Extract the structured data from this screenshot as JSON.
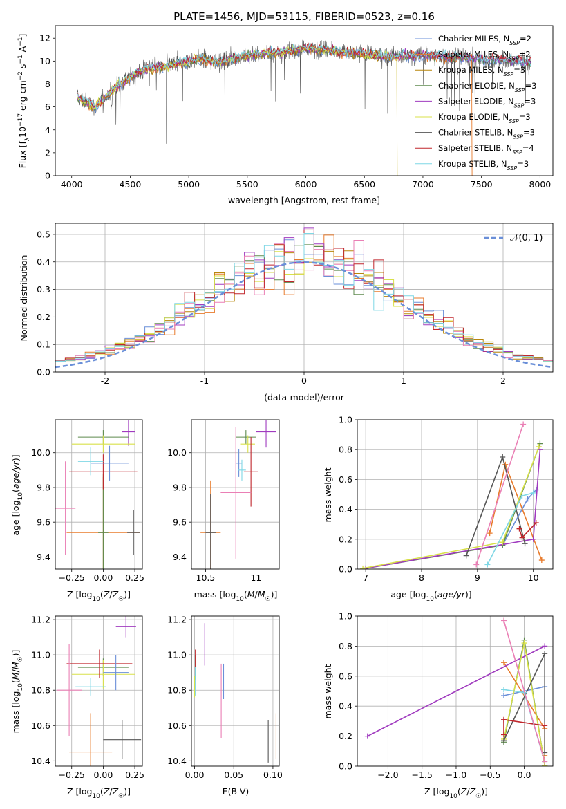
{
  "chart_data": [
    {
      "id": "spectrum",
      "type": "line",
      "title": "PLATE=1456, MJD=53115, FIBERID=0523, z=0.16",
      "xlabel": "wavelength [Angstrom, rest frame]",
      "ylabel": "Flux [f_λ 10^-17 erg cm^-2 s^-1 A^-1]",
      "xlim": [
        3860,
        8110
      ],
      "ylim": [
        0,
        13.1
      ],
      "xticks": [
        4000,
        4500,
        5000,
        5500,
        6000,
        6500,
        7000,
        7500,
        8000
      ],
      "yticks": [
        0,
        2,
        4,
        6,
        8,
        10,
        12
      ],
      "grid": false,
      "legend_position": "upper-right",
      "legend": [
        {
          "label": "Chabrier MILES, N_SSP=2",
          "color": "#6a8fd8"
        },
        {
          "label": "Salpeter MILES, N_SSP=2",
          "color": "#e87b2c"
        },
        {
          "label": "Kroupa MILES, N_SSP=3",
          "color": "#b8860b"
        },
        {
          "label": "Chabrier ELODIE, N_SSP=3",
          "color": "#5e8a4e"
        },
        {
          "label": "Salpeter ELODIE, N_SSP=3",
          "color": "#a03bbf"
        },
        {
          "label": "Kroupa ELODIE, N_SSP=3",
          "color": "#d8e04a"
        },
        {
          "label": "Chabrier STELIB, N_SSP=3",
          "color": "#555555"
        },
        {
          "label": "Salpeter STELIB, N_SSP=4",
          "color": "#c0262c"
        },
        {
          "label": "Kroupa STELIB, N_SSP=3",
          "color": "#7fd7e5"
        }
      ],
      "continuum": [
        [
          4050,
          6.8
        ],
        [
          4200,
          6.0
        ],
        [
          4350,
          7.5
        ],
        [
          4500,
          8.6
        ],
        [
          4650,
          9.4
        ],
        [
          4800,
          9.5
        ],
        [
          4950,
          9.9
        ],
        [
          5100,
          10.2
        ],
        [
          5250,
          9.9
        ],
        [
          5400,
          10.3
        ],
        [
          5600,
          10.6
        ],
        [
          5800,
          10.8
        ],
        [
          6000,
          11.1
        ],
        [
          6200,
          11.0
        ],
        [
          6400,
          10.7
        ],
        [
          6600,
          10.5
        ],
        [
          6800,
          10.4
        ],
        [
          7000,
          10.5
        ],
        [
          7200,
          10.4
        ],
        [
          7400,
          10.3
        ],
        [
          7600,
          10.1
        ],
        [
          7800,
          10.0
        ],
        [
          7920,
          9.9
        ]
      ],
      "data_end": 7920,
      "model_drop_wavelengths": [
        6780,
        7420
      ]
    },
    {
      "id": "residuals",
      "type": "histogram",
      "xlabel": "(data-model)/error",
      "ylabel": "Normed distribution",
      "xlim": [
        -2.5,
        2.5
      ],
      "ylim": [
        0,
        0.54
      ],
      "xticks": [
        -2,
        -1,
        0,
        1,
        2
      ],
      "yticks": [
        0.0,
        0.1,
        0.2,
        0.3,
        0.4,
        0.5
      ],
      "grid": true,
      "legend_position": "upper-right",
      "legend": [
        {
          "label": "𝒩(0, 1)",
          "color": "#6a8fd8",
          "style": "dashed"
        }
      ],
      "bin_width": 0.1,
      "series_colors": [
        "#6a8fd8",
        "#e87b2c",
        "#b8860b",
        "#5e8a4e",
        "#a03bbf",
        "#d8e04a",
        "#ea7fb5",
        "#c0262c",
        "#7fd7e5"
      ]
    },
    {
      "id": "age-vs-Z",
      "type": "errorbar",
      "xlabel": "Z [log10(Z/Z☉)]",
      "ylabel": "age [log10(age/yr)]",
      "xlim": [
        -0.38,
        0.31
      ],
      "ylim": [
        9.33,
        10.19
      ],
      "xticks": [
        -0.25,
        0.0,
        0.25
      ],
      "xticklabels": [
        "−0.25",
        "0.00",
        "0.25"
      ],
      "yticks": [
        9.4,
        9.6,
        9.8,
        10.0
      ],
      "grid": true,
      "points": [
        {
          "x": 0.0,
          "xerr": 0.29,
          "y": 9.54,
          "yerr": 0.32,
          "color": "#e87b2c"
        },
        {
          "x": 0.0,
          "xerr": 0.04,
          "y": 9.54,
          "yerr": 0.34,
          "color": "#5e8a4e"
        },
        {
          "x": 0.2,
          "xerr": 0.05,
          "y": 10.12,
          "yerr": 0.08,
          "color": "#a03bbf"
        },
        {
          "x": 0.0,
          "xerr": 0.2,
          "y": 10.09,
          "yerr": 0.04,
          "color": "#5e8a4e"
        },
        {
          "x": 0.0,
          "xerr": 0.25,
          "y": 10.05,
          "yerr": 0.05,
          "color": "#d8e04a"
        },
        {
          "x": 0.0,
          "xerr": 0.27,
          "y": 9.89,
          "yerr": 0.1,
          "color": "#c0262c"
        },
        {
          "x": 0.05,
          "xerr": 0.15,
          "y": 9.94,
          "yerr": 0.1,
          "color": "#6a8fd8"
        },
        {
          "x": -0.1,
          "xerr": 0.1,
          "y": 9.95,
          "yerr": 0.08,
          "color": "#7fd7e5"
        },
        {
          "x": -0.3,
          "xerr": 0.08,
          "y": 9.68,
          "yerr": 0.27,
          "color": "#ea7fb5"
        },
        {
          "x": 0.24,
          "xerr": 0.05,
          "y": 9.54,
          "yerr": 0.13,
          "color": "#555555"
        }
      ]
    },
    {
      "id": "age-vs-mass",
      "type": "errorbar",
      "xlabel": "mass [log10(M/M☉)]",
      "ylabel": "",
      "xlim": [
        10.36,
        11.23
      ],
      "ylim": [
        9.33,
        10.19
      ],
      "xticks": [
        10.5,
        11.0
      ],
      "yticks": [
        9.4,
        9.6,
        9.8,
        10.0
      ],
      "grid": true,
      "points": [
        {
          "x": 10.55,
          "xerr": 0.1,
          "y": 9.54,
          "yerr": 0.3,
          "color": "#e87b2c"
        },
        {
          "x": 10.55,
          "xerr": 0.05,
          "y": 9.54,
          "yerr": 0.22,
          "color": "#555555"
        },
        {
          "x": 11.1,
          "xerr": 0.1,
          "y": 10.12,
          "yerr": 0.09,
          "color": "#a03bbf"
        },
        {
          "x": 10.9,
          "xerr": 0.1,
          "y": 10.09,
          "yerr": 0.04,
          "color": "#5e8a4e"
        },
        {
          "x": 10.92,
          "xerr": 0.07,
          "y": 10.05,
          "yerr": 0.05,
          "color": "#d8e04a"
        },
        {
          "x": 10.95,
          "xerr": 0.07,
          "y": 9.89,
          "yerr": 0.2,
          "color": "#c0262c"
        },
        {
          "x": 10.83,
          "xerr": 0.03,
          "y": 9.94,
          "yerr": 0.08,
          "color": "#6a8fd8"
        },
        {
          "x": 10.86,
          "xerr": 0.04,
          "y": 9.9,
          "yerr": 0.06,
          "color": "#7fd7e5"
        },
        {
          "x": 10.8,
          "xerr": 0.15,
          "y": 9.77,
          "yerr": 0.38,
          "color": "#ea7fb5"
        }
      ]
    },
    {
      "id": "weight-vs-age",
      "type": "line",
      "xlabel": "age [log10(age/yr)]",
      "ylabel": "mass weight",
      "xlim": [
        6.85,
        10.35
      ],
      "ylim": [
        0,
        1
      ],
      "xticks": [
        7,
        8,
        9,
        10
      ],
      "yticks": [
        0.0,
        0.2,
        0.4,
        0.6,
        0.8,
        1.0
      ],
      "grid": true,
      "series": [
        {
          "color": "#6a8fd8",
          "x": [
            9.45,
            9.9,
            10.05
          ],
          "y": [
            0.16,
            0.47,
            0.53
          ]
        },
        {
          "color": "#e87b2c",
          "x": [
            9.22,
            9.5,
            10.15
          ],
          "y": [
            0.24,
            0.7,
            0.06
          ]
        },
        {
          "color": "#5e8a4e",
          "x": [
            7.0,
            9.45,
            10.12
          ],
          "y": [
            0.005,
            0.16,
            0.84
          ]
        },
        {
          "color": "#a03bbf",
          "x": [
            7.0,
            10.0,
            10.12
          ],
          "y": [
            0.005,
            0.2,
            0.8
          ]
        },
        {
          "color": "#d8e04a",
          "x": [
            6.95,
            9.45,
            10.1
          ],
          "y": [
            0.005,
            0.18,
            0.82
          ]
        },
        {
          "color": "#555555",
          "x": [
            8.8,
            9.45,
            9.85
          ],
          "y": [
            0.09,
            0.75,
            0.17
          ]
        },
        {
          "color": "#c0262c",
          "x": [
            9.75,
            9.8,
            10.05
          ],
          "y": [
            0.27,
            0.21,
            0.31
          ]
        },
        {
          "color": "#7fd7e5",
          "x": [
            9.18,
            9.8,
            10.0
          ],
          "y": [
            0.03,
            0.49,
            0.51
          ]
        },
        {
          "color": "#ea7fb5",
          "x": [
            8.98,
            9.82
          ],
          "y": [
            0.03,
            0.97
          ]
        }
      ]
    },
    {
      "id": "mass-vs-Z",
      "type": "errorbar",
      "xlabel": "Z [log10(Z/Z☉)]",
      "ylabel": "mass [log10(M/M☉)]",
      "xlim": [
        -0.38,
        0.31
      ],
      "ylim": [
        10.37,
        11.22
      ],
      "xticks": [
        -0.25,
        0.0,
        0.25
      ],
      "xticklabels": [
        "−0.25",
        "0.00",
        "0.25"
      ],
      "yticks": [
        10.4,
        10.6,
        10.8,
        11.0,
        11.2
      ],
      "grid": true,
      "points": [
        {
          "x": -0.1,
          "xerr": 0.17,
          "y": 10.45,
          "yerr": 0.22,
          "color": "#e87b2c"
        },
        {
          "x": 0.15,
          "xerr": 0.15,
          "y": 10.52,
          "yerr": 0.11,
          "color": "#555555"
        },
        {
          "x": 0.18,
          "xerr": 0.08,
          "y": 11.16,
          "yerr": 0.06,
          "color": "#a03bbf"
        },
        {
          "x": 0.0,
          "xerr": 0.2,
          "y": 10.93,
          "yerr": 0.05,
          "color": "#5e8a4e"
        },
        {
          "x": 0.0,
          "xerr": 0.25,
          "y": 10.89,
          "yerr": 0.08,
          "color": "#d8e04a"
        },
        {
          "x": -0.03,
          "xerr": 0.26,
          "y": 10.95,
          "yerr": 0.08,
          "color": "#c0262c"
        },
        {
          "x": 0.1,
          "xerr": 0.1,
          "y": 10.9,
          "yerr": 0.1,
          "color": "#6a8fd8"
        },
        {
          "x": -0.1,
          "xerr": 0.12,
          "y": 10.82,
          "yerr": 0.05,
          "color": "#7fd7e5"
        },
        {
          "x": -0.27,
          "xerr": 0.1,
          "y": 10.8,
          "yerr": 0.26,
          "color": "#ea7fb5"
        }
      ]
    },
    {
      "id": "mass-vs-EBV",
      "type": "errorbar",
      "xlabel": "E(B-V)",
      "ylabel": "",
      "xlim": [
        -0.004,
        0.108
      ],
      "ylim": [
        10.37,
        11.22
      ],
      "xticks": [
        0.0,
        0.05,
        0.1
      ],
      "xticklabels": [
        "0.00",
        "0.05",
        "0.10"
      ],
      "yticks": [
        10.4,
        10.6,
        10.8,
        11.0,
        11.2
      ],
      "grid": true,
      "points": [
        {
          "x": 0.104,
          "xerr": 0,
          "y": 10.54,
          "yerr": 0.13,
          "color": "#e87b2c"
        },
        {
          "x": 0.094,
          "xerr": 0,
          "y": 10.51,
          "yerr": 0.12,
          "color": "#555555"
        },
        {
          "x": 0.013,
          "xerr": 0,
          "y": 11.06,
          "yerr": 0.12,
          "color": "#a03bbf"
        },
        {
          "x": 0.001,
          "xerr": 0,
          "y": 10.93,
          "yerr": 0.07,
          "color": "#5e8a4e"
        },
        {
          "x": 0.0,
          "xerr": 0,
          "y": 10.82,
          "yerr": 0.06,
          "color": "#d8e04a"
        },
        {
          "x": 0.001,
          "xerr": 0,
          "y": 10.98,
          "yerr": 0.05,
          "color": "#c0262c"
        },
        {
          "x": 0.037,
          "xerr": 0,
          "y": 10.85,
          "yerr": 0.1,
          "color": "#6a8fd8"
        },
        {
          "x": 0.001,
          "xerr": 0,
          "y": 10.85,
          "yerr": 0.08,
          "color": "#7fd7e5"
        },
        {
          "x": 0.034,
          "xerr": 0,
          "y": 10.74,
          "yerr": 0.21,
          "color": "#ea7fb5"
        }
      ]
    },
    {
      "id": "weight-vs-Z",
      "type": "line",
      "xlabel": "Z [log10(Z/Z☉)]",
      "ylabel": "mass weight",
      "xlim": [
        -2.45,
        0.42
      ],
      "ylim": [
        0,
        1
      ],
      "xticks": [
        -2.0,
        -1.5,
        -1.0,
        -0.5,
        0.0
      ],
      "xticklabels": [
        "−2.0",
        "−1.5",
        "−1.0",
        "−0.5",
        "0.0"
      ],
      "yticks": [
        0.0,
        0.2,
        0.4,
        0.6,
        0.8,
        1.0
      ],
      "grid": true,
      "series": [
        {
          "color": "#6a8fd8",
          "x": [
            -0.3,
            0.0,
            0.3
          ],
          "y": [
            0.47,
            0.5,
            0.53
          ]
        },
        {
          "color": "#e87b2c",
          "x": [
            -0.3,
            0.3,
            0.3
          ],
          "y": [
            0.69,
            0.25,
            0.07
          ]
        },
        {
          "color": "#5e8a4e",
          "x": [
            -0.3,
            0.0,
            0.3
          ],
          "y": [
            0.16,
            0.84,
            0.005
          ]
        },
        {
          "color": "#a03bbf",
          "x": [
            -2.3,
            0.3
          ],
          "y": [
            0.2,
            0.8
          ]
        },
        {
          "color": "#d8e04a",
          "x": [
            -0.3,
            0.0,
            0.3
          ],
          "y": [
            0.18,
            0.82,
            0.005
          ]
        },
        {
          "color": "#555555",
          "x": [
            -0.3,
            0.3,
            0.3
          ],
          "y": [
            0.17,
            0.75,
            0.09
          ]
        },
        {
          "color": "#c0262c",
          "x": [
            -0.3,
            -0.3,
            0.3
          ],
          "y": [
            0.21,
            0.31,
            0.27
          ]
        },
        {
          "color": "#7fd7e5",
          "x": [
            -0.3,
            0.0,
            0.3
          ],
          "y": [
            0.51,
            0.49,
            0.03
          ]
        },
        {
          "color": "#ea7fb5",
          "x": [
            -0.3,
            0.3
          ],
          "y": [
            0.97,
            0.03
          ]
        }
      ]
    }
  ]
}
